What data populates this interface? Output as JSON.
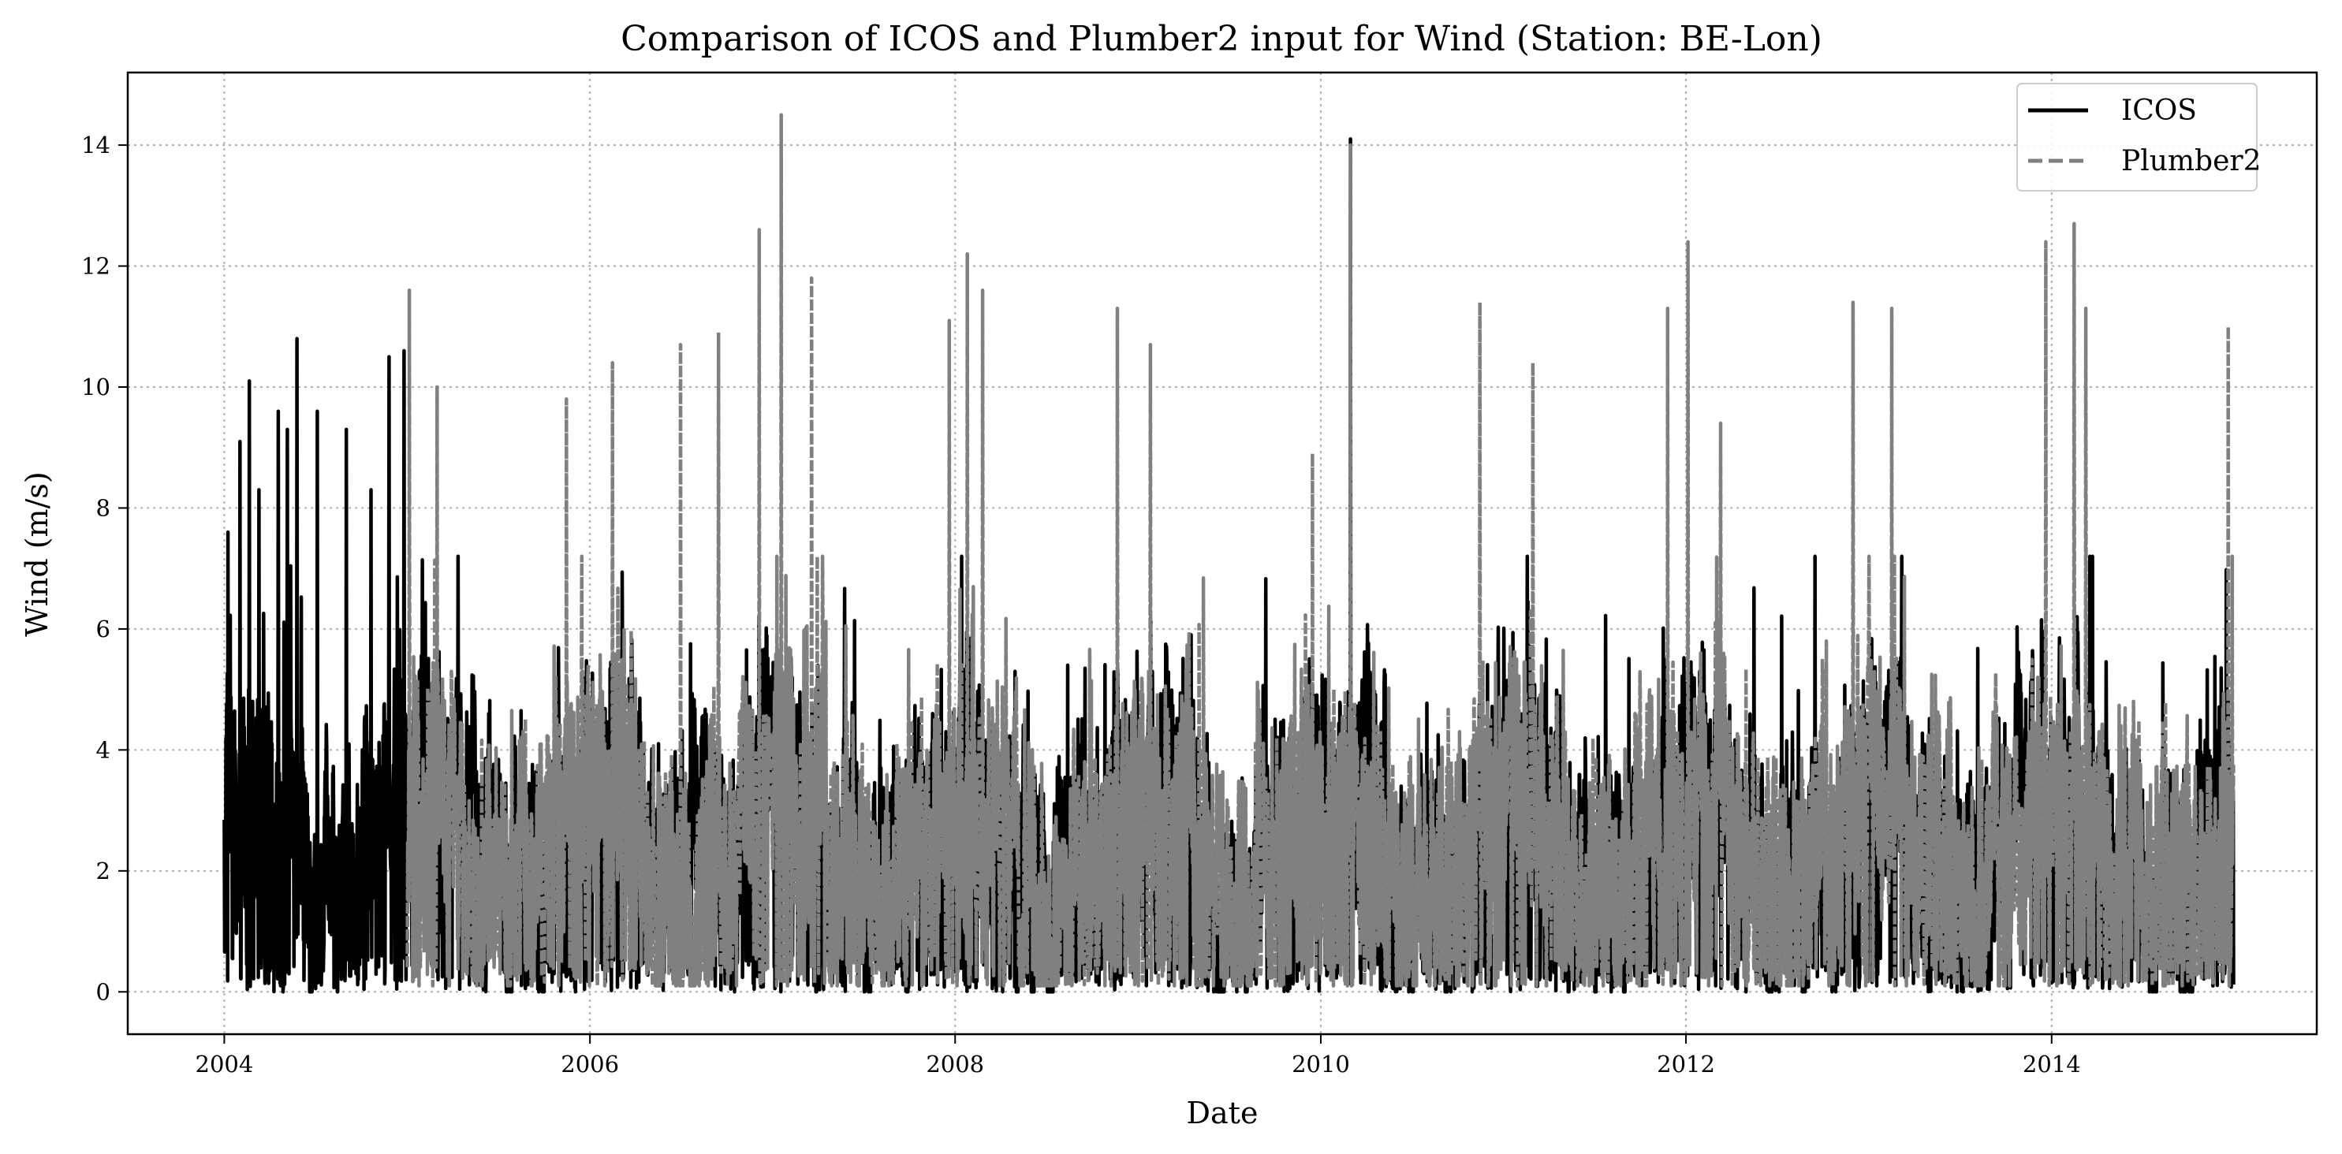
{
  "chart_data": {
    "type": "line",
    "title": "Comparison of ICOS and Plumber2 input for Wind (Station: BE-Lon)",
    "xlabel": "Date",
    "ylabel": "Wind (m/s)",
    "xlim": [
      "2003-06-22",
      "2015-06-15"
    ],
    "ylim": [
      -0.7,
      15.2
    ],
    "x_ticks": [
      "2004",
      "2006",
      "2008",
      "2010",
      "2012",
      "2014"
    ],
    "y_ticks": [
      "0",
      "2",
      "4",
      "6",
      "8",
      "10",
      "12",
      "14"
    ],
    "grid": true,
    "grid_style": "dotted",
    "legend_position": "top-right",
    "series": [
      {
        "name": "ICOS",
        "color": "#000000",
        "style": "solid",
        "date_range": [
          "2004-01-01",
          "2014-12-31"
        ],
        "value_range": [
          0.0,
          14.1
        ],
        "peaks": [
          {
            "date": "2004-01-08",
            "value": 7.6
          },
          {
            "date": "2004-02-01",
            "value": 9.1
          },
          {
            "date": "2004-02-20",
            "value": 10.1
          },
          {
            "date": "2004-03-10",
            "value": 8.3
          },
          {
            "date": "2004-04-18",
            "value": 9.6
          },
          {
            "date": "2004-05-06",
            "value": 9.3
          },
          {
            "date": "2004-05-25",
            "value": 10.8
          },
          {
            "date": "2004-07-05",
            "value": 9.6
          },
          {
            "date": "2004-09-01",
            "value": 9.3
          },
          {
            "date": "2004-10-20",
            "value": 8.3
          },
          {
            "date": "2004-11-25",
            "value": 10.5
          },
          {
            "date": "2004-12-25",
            "value": 10.6
          },
          {
            "date": "2010-03-01",
            "value": 14.1
          }
        ]
      },
      {
        "name": "Plumber2",
        "color": "#808080",
        "style": "dashed",
        "date_range": [
          "2005-01-01",
          "2014-12-31"
        ],
        "value_range": [
          0.1,
          14.5
        ],
        "peaks": [
          {
            "date": "2005-01-05",
            "value": 11.6
          },
          {
            "date": "2005-03-01",
            "value": 10.0
          },
          {
            "date": "2005-11-15",
            "value": 9.8
          },
          {
            "date": "2006-02-15",
            "value": 10.4
          },
          {
            "date": "2006-07-01",
            "value": 10.7
          },
          {
            "date": "2006-09-15",
            "value": 10.9
          },
          {
            "date": "2006-12-05",
            "value": 12.6
          },
          {
            "date": "2007-01-18",
            "value": 14.5
          },
          {
            "date": "2007-03-20",
            "value": 11.8
          },
          {
            "date": "2007-12-20",
            "value": 11.1
          },
          {
            "date": "2008-01-25",
            "value": 12.2
          },
          {
            "date": "2008-02-25",
            "value": 11.6
          },
          {
            "date": "2008-11-20",
            "value": 11.3
          },
          {
            "date": "2009-01-25",
            "value": 10.7
          },
          {
            "date": "2009-12-15",
            "value": 8.9
          },
          {
            "date": "2010-03-01",
            "value": 14.0
          },
          {
            "date": "2010-11-15",
            "value": 11.4
          },
          {
            "date": "2011-03-01",
            "value": 10.4
          },
          {
            "date": "2011-11-25",
            "value": 11.3
          },
          {
            "date": "2012-01-05",
            "value": 12.4
          },
          {
            "date": "2012-03-10",
            "value": 9.4
          },
          {
            "date": "2012-11-30",
            "value": 11.4
          },
          {
            "date": "2013-02-15",
            "value": 11.3
          },
          {
            "date": "2013-12-20",
            "value": 12.4
          },
          {
            "date": "2014-02-15",
            "value": 12.7
          },
          {
            "date": "2014-03-10",
            "value": 11.3
          },
          {
            "date": "2014-12-20",
            "value": 11.0
          }
        ]
      }
    ]
  }
}
